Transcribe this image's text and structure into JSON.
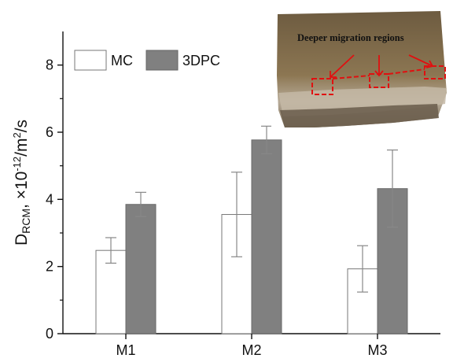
{
  "chart_data": {
    "type": "bar",
    "categories": [
      "M1",
      "M2",
      "M3"
    ],
    "series": [
      {
        "name": "MC",
        "color": "#ffffff",
        "values": [
          2.48,
          3.55,
          1.93
        ],
        "errors": [
          0.38,
          1.26,
          0.69
        ]
      },
      {
        "name": "3DPC",
        "color": "#808080",
        "values": [
          3.85,
          5.77,
          4.32
        ],
        "errors": [
          0.36,
          0.41,
          1.15
        ]
      }
    ],
    "ylabel": {
      "main": "D",
      "subscript": "RCM",
      "rest": ", ×10",
      "superscript": "-12",
      "unit": "/m",
      "unit_sup": "2",
      "tail": "/s"
    },
    "xlabel": "",
    "ylim": [
      0,
      9
    ],
    "yticks": [
      0,
      2,
      4,
      6,
      8
    ],
    "grid": false,
    "legend_position": "top-left",
    "inset": {
      "annotation": "Deeper migration regions",
      "description_color_rock": "#8a7455"
    }
  }
}
